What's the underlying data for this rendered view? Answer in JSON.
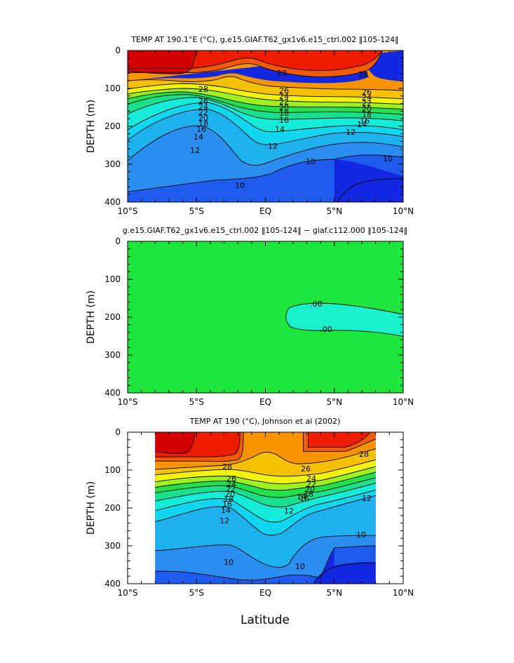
{
  "figure": {
    "xlabel": "Latitude",
    "x_ticks": [
      "10°S",
      "5°S",
      "EQ",
      "5°N",
      "10°N"
    ],
    "x_range": [
      -10,
      10
    ],
    "colors": {
      "c_lt10": "#1427e0",
      "c_10_11": "#1e5cf0",
      "c_11_12": "#2a8ef0",
      "c_12_13": "#1fb0f0",
      "c_13_14": "#11d6ef",
      "c_14_16": "#14ecd9",
      "c_16_18": "#19e08c",
      "c_18_20": "#24e04a",
      "c_20_22": "#9ef01e",
      "c_22_24": "#f2f20a",
      "c_24_26": "#f5c000",
      "c_26_28": "#f79400",
      "c_28_29": "#f55a00",
      "c_29_30": "#ee1c00",
      "c_gt30": "#d40000",
      "diff_bg": "#1ee63c",
      "diff_neg": "#17f2cc"
    }
  },
  "chart_data": [
    {
      "type": "contour",
      "title": "TEMP AT 190.1°E (°C), g.e15.GIAF.T62_gx1v6.e15_ctrl.002 ‖105-124‖",
      "xlabel": "",
      "ylabel": "DEPTH (m)",
      "y_ticks": [
        "0",
        "100",
        "200",
        "300",
        "400"
      ],
      "xlim": [
        -10,
        10
      ],
      "ylim": [
        0,
        400
      ],
      "contour_labels": [
        "28",
        "28",
        "28",
        "26",
        "24",
        "22",
        "20",
        "18",
        "16",
        "14",
        "12",
        "26",
        "24",
        "22",
        "20",
        "18",
        "16",
        "14",
        "12",
        "26",
        "24",
        "22",
        "20",
        "18",
        "16",
        "14",
        "12",
        "10",
        "10",
        "10"
      ]
    },
    {
      "type": "contour",
      "title": "g.e15.GIAF.T62_gx1v6.e15_ctrl.002 ‖105-124‖ − giaf.c112.000 ‖105-124‖",
      "xlabel": "",
      "ylabel": "DEPTH (m)",
      "y_ticks": [
        "0",
        "100",
        "200",
        "300",
        "400"
      ],
      "xlim": [
        -10,
        10
      ],
      "ylim": [
        0,
        400
      ],
      "contour_labels": [
        ".00",
        ".00"
      ]
    },
    {
      "type": "contour",
      "title": "TEMP AT 190 (°C), Johnson et al (2002)",
      "xlabel": "Latitude",
      "ylabel": "DEPTH (m)",
      "y_ticks": [
        "0",
        "100",
        "200",
        "300",
        "400"
      ],
      "xlim": [
        -10,
        10
      ],
      "ylim": [
        0,
        400
      ],
      "contour_labels": [
        "28",
        "26",
        "24",
        "22",
        "20",
        "18",
        "16",
        "14",
        "12",
        "26",
        "24",
        "22",
        "20",
        "18",
        "16",
        "14",
        "12",
        "28",
        "12",
        "10",
        "10",
        "10"
      ]
    }
  ]
}
